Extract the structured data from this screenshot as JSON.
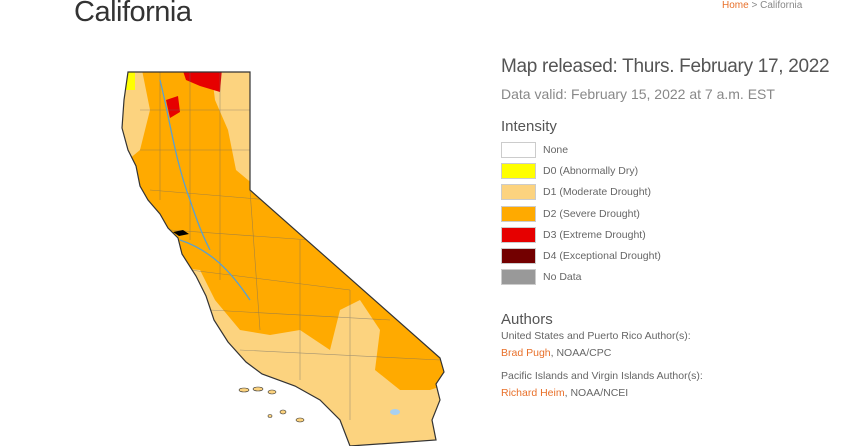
{
  "page": {
    "title": "California"
  },
  "breadcrumb": {
    "home": "Home",
    "separator": " > ",
    "current": "California"
  },
  "map_info": {
    "released": "Map released: Thurs. February 17, 2022",
    "valid": "Data valid: February 15, 2022 at 7 a.m. EST"
  },
  "legend": {
    "title": "Intensity",
    "items": [
      {
        "label": "None",
        "color": "#ffffff"
      },
      {
        "label": "D0 (Abnormally Dry)",
        "color": "#ffff00"
      },
      {
        "label": "D1 (Moderate Drought)",
        "color": "#fcd37f"
      },
      {
        "label": "D2 (Severe Drought)",
        "color": "#ffaa00"
      },
      {
        "label": "D3 (Extreme Drought)",
        "color": "#e60000"
      },
      {
        "label": "D4 (Exceptional Drought)",
        "color": "#730000"
      },
      {
        "label": "No Data",
        "color": "#999999"
      }
    ]
  },
  "authors": {
    "title": "Authors",
    "us_label": "United States and Puerto Rico Author(s):",
    "us_name": "Brad Pugh",
    "us_org": ", NOAA/CPC",
    "pi_label": "Pacific Islands and Virgin Islands Author(s):",
    "pi_name": "Richard Heim",
    "pi_org": ", NOAA/NCEI"
  }
}
